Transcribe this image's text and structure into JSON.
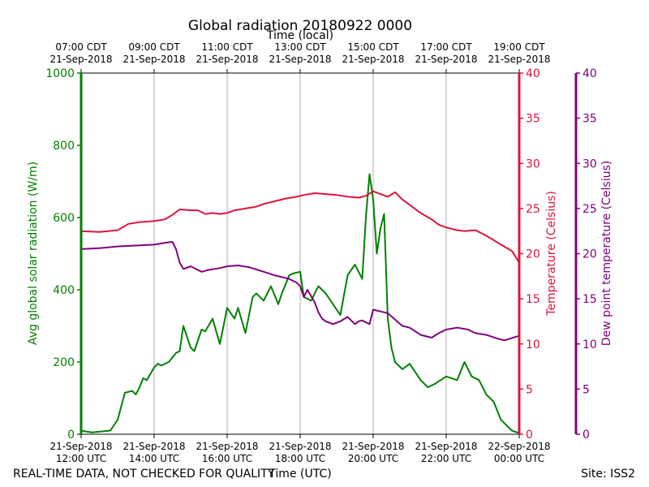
{
  "chart_data": {
    "type": "line",
    "title": "Global radiation 20180922 0000",
    "top_axis_label": "Time (local)",
    "xlabel": "Time (UTC)",
    "footer_left": "REAL-TIME DATA, NOT CHECKED FOR QUALITY",
    "footer_right": "Site: ISS2",
    "x_range_hours_utc": [
      12,
      24
    ],
    "bottom_ticks": [
      {
        "hour": 12,
        "line1": "21-Sep-2018",
        "line2": "12:00 UTC"
      },
      {
        "hour": 14,
        "line1": "21-Sep-2018",
        "line2": "14:00 UTC"
      },
      {
        "hour": 16,
        "line1": "21-Sep-2018",
        "line2": "16:00 UTC"
      },
      {
        "hour": 18,
        "line1": "21-Sep-2018",
        "line2": "18:00 UTC"
      },
      {
        "hour": 20,
        "line1": "21-Sep-2018",
        "line2": "20:00 UTC"
      },
      {
        "hour": 22,
        "line1": "21-Sep-2018",
        "line2": "22:00 UTC"
      },
      {
        "hour": 24,
        "line1": "22-Sep-2018",
        "line2": "00:00 UTC"
      }
    ],
    "top_ticks": [
      {
        "hour": 12,
        "line1": "07:00 CDT",
        "line2": "21-Sep-2018"
      },
      {
        "hour": 14,
        "line1": "09:00 CDT",
        "line2": "21-Sep-2018"
      },
      {
        "hour": 16,
        "line1": "11:00 CDT",
        "line2": "21-Sep-2018"
      },
      {
        "hour": 18,
        "line1": "13:00 CDT",
        "line2": "21-Sep-2018"
      },
      {
        "hour": 20,
        "line1": "15:00 CDT",
        "line2": "21-Sep-2018"
      },
      {
        "hour": 22,
        "line1": "17:00 CDT",
        "line2": "21-Sep-2018"
      },
      {
        "hour": 24,
        "line1": "19:00 CDT",
        "line2": "21-Sep-2018"
      }
    ],
    "grid": "vertical",
    "axes": {
      "radiation": {
        "label": "Avg global solar radiation (W/m)",
        "ylim": [
          0,
          1000
        ],
        "ticks": [
          0,
          200,
          400,
          600,
          800,
          1000
        ],
        "color": "#008000",
        "side": "left"
      },
      "temperature": {
        "label": "Temperature (Celsius)",
        "ylim": [
          0,
          40
        ],
        "ticks": [
          0,
          5,
          10,
          15,
          20,
          25,
          30,
          35,
          40
        ],
        "color": "#dc143c",
        "side": "right"
      },
      "dewpoint": {
        "label": "Dew point temperature (Celsius)",
        "ylim": [
          0,
          40
        ],
        "ticks": [
          0,
          5,
          10,
          15,
          20,
          25,
          30,
          35,
          40
        ],
        "color": "#800080",
        "side": "far-right"
      }
    },
    "series": [
      {
        "name": "Avg global solar radiation",
        "axis": "radiation",
        "color": "#008000",
        "x": [
          12.0,
          12.1,
          12.3,
          12.6,
          12.8,
          13.0,
          13.2,
          13.4,
          13.5,
          13.6,
          13.7,
          13.8,
          14.0,
          14.1,
          14.2,
          14.4,
          14.6,
          14.7,
          14.8,
          15.0,
          15.1,
          15.3,
          15.4,
          15.6,
          15.8,
          15.9,
          16.0,
          16.2,
          16.3,
          16.5,
          16.7,
          16.8,
          17.0,
          17.2,
          17.4,
          17.5,
          17.7,
          17.8,
          18.0,
          18.1,
          18.3,
          18.5,
          18.7,
          18.9,
          19.1,
          19.3,
          19.5,
          19.7,
          19.8,
          19.9,
          20.0,
          20.1,
          20.2,
          20.3,
          20.4,
          20.5,
          20.6,
          20.8,
          21.0,
          21.3,
          21.5,
          21.7,
          22.0,
          22.3,
          22.5,
          22.7,
          22.9,
          23.1,
          23.3,
          23.5,
          23.8,
          24.0
        ],
        "values": [
          10,
          8,
          5,
          8,
          10,
          40,
          115,
          120,
          110,
          130,
          155,
          150,
          185,
          195,
          190,
          200,
          225,
          230,
          300,
          240,
          230,
          290,
          285,
          320,
          250,
          300,
          350,
          320,
          350,
          280,
          380,
          390,
          370,
          410,
          360,
          390,
          440,
          445,
          450,
          380,
          370,
          410,
          390,
          360,
          330,
          440,
          470,
          430,
          600,
          720,
          650,
          500,
          570,
          610,
          320,
          240,
          200,
          180,
          195,
          150,
          130,
          140,
          160,
          150,
          200,
          160,
          150,
          110,
          90,
          40,
          10,
          3
        ]
      },
      {
        "name": "Temperature",
        "axis": "temperature",
        "color": "#dc143c",
        "x": [
          12.0,
          12.5,
          13.0,
          13.3,
          13.6,
          14.0,
          14.3,
          14.5,
          14.7,
          15.0,
          15.2,
          15.4,
          15.6,
          15.8,
          16.0,
          16.2,
          16.5,
          16.8,
          17.0,
          17.3,
          17.6,
          17.9,
          18.1,
          18.4,
          18.7,
          19.0,
          19.3,
          19.6,
          19.8,
          20.0,
          20.2,
          20.4,
          20.6,
          20.8,
          21.0,
          21.3,
          21.6,
          21.8,
          22.0,
          22.3,
          22.5,
          22.8,
          23.0,
          23.3,
          23.5,
          23.8,
          24.0
        ],
        "values": [
          22.5,
          22.4,
          22.6,
          23.3,
          23.5,
          23.6,
          23.8,
          24.3,
          24.9,
          24.8,
          24.8,
          24.4,
          24.5,
          24.4,
          24.5,
          24.8,
          25.0,
          25.2,
          25.5,
          25.8,
          26.1,
          26.3,
          26.5,
          26.7,
          26.6,
          26.5,
          26.3,
          26.2,
          26.4,
          26.9,
          26.6,
          26.3,
          26.8,
          26.0,
          25.4,
          24.5,
          23.8,
          23.2,
          22.9,
          22.6,
          22.5,
          22.6,
          22.2,
          21.5,
          21.0,
          20.3,
          19.0
        ]
      },
      {
        "name": "Dew point temperature",
        "axis": "dewpoint",
        "color": "#800080",
        "x": [
          12.0,
          12.5,
          13.0,
          13.5,
          14.0,
          14.3,
          14.5,
          14.6,
          14.7,
          14.8,
          15.0,
          15.3,
          15.5,
          15.8,
          16.0,
          16.3,
          16.6,
          17.0,
          17.3,
          17.5,
          17.7,
          17.9,
          18.0,
          18.1,
          18.2,
          18.3,
          18.4,
          18.5,
          18.6,
          18.7,
          18.9,
          19.1,
          19.3,
          19.5,
          19.6,
          19.7,
          19.8,
          19.9,
          20.0,
          20.2,
          20.4,
          20.6,
          20.8,
          21.0,
          21.3,
          21.6,
          21.8,
          22.0,
          22.3,
          22.6,
          22.8,
          23.1,
          23.4,
          23.6,
          24.0
        ],
        "values": [
          20.5,
          20.6,
          20.8,
          20.9,
          21.0,
          21.2,
          21.3,
          20.5,
          19.0,
          18.3,
          18.6,
          18.0,
          18.2,
          18.4,
          18.6,
          18.7,
          18.5,
          18.0,
          17.6,
          17.4,
          17.2,
          16.8,
          16.4,
          15.2,
          16.0,
          15.3,
          14.6,
          13.5,
          12.8,
          12.5,
          12.2,
          12.5,
          13.0,
          12.2,
          12.5,
          12.6,
          12.4,
          12.2,
          13.8,
          13.6,
          13.4,
          12.7,
          12.0,
          11.8,
          11.0,
          10.7,
          11.2,
          11.6,
          11.8,
          11.6,
          11.2,
          11.0,
          10.6,
          10.4,
          10.9
        ]
      }
    ]
  }
}
